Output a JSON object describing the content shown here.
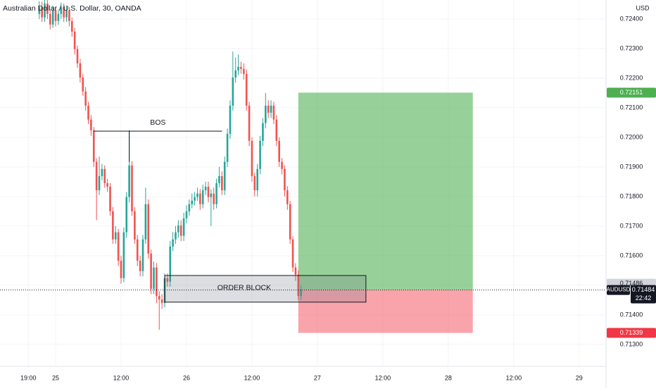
{
  "chart_data": {
    "type": "candlestick",
    "title": "Australian Dollar / U.S. Dollar, 30, OANDA",
    "currency": "USD",
    "symbol": "AUDUSD",
    "countdown": "22:42",
    "up_color": "#26a69a",
    "down_color": "#ef5350",
    "grid": true,
    "x": [
      -3,
      -2.5,
      -2,
      -1.5,
      -1,
      -0.5,
      0,
      0.5,
      1,
      1.5,
      2,
      2.5,
      3,
      3.5,
      4,
      4.5,
      5,
      5.5,
      6,
      6.5,
      7,
      7.5,
      8,
      8.5,
      9,
      9.5,
      10,
      10.5,
      11,
      11.5,
      12,
      12.5,
      13,
      13.5,
      14,
      14.5,
      15,
      15.5,
      16,
      16.5,
      17,
      17.5,
      18,
      18.5,
      19,
      19.5,
      20,
      20.5,
      21,
      21.5,
      22,
      22.5,
      23,
      23.5,
      24,
      24.5,
      25,
      25.5,
      26,
      26.5,
      27,
      27.5,
      28,
      28.5,
      29,
      29.5,
      30,
      30.5,
      31,
      31.5,
      32,
      32.5,
      33,
      33.5,
      34,
      34.5,
      35,
      35.5,
      36,
      36.5,
      37,
      37.5,
      38,
      38.5,
      39,
      39.5,
      40,
      40.5,
      41,
      41.5,
      42,
      42.5,
      43,
      43.5,
      44,
      44.5,
      45
    ],
    "open": [
      0.72417,
      0.7244,
      0.72405,
      0.72452,
      0.72417,
      0.72381,
      0.72429,
      0.72393,
      0.72417,
      0.7244,
      0.72405,
      0.72429,
      0.72393,
      0.72357,
      0.72298,
      0.7225,
      0.72202,
      0.72155,
      0.72107,
      0.7206,
      0.72024,
      0.71917,
      0.71821,
      0.71869,
      0.71893,
      0.71845,
      0.71833,
      0.7175,
      0.71655,
      0.71679,
      0.71583,
      0.71524,
      0.71679,
      0.71798,
      0.71905,
      0.7175,
      0.71655,
      0.71583,
      0.71548,
      0.71655,
      0.71774,
      0.71607,
      0.71488,
      0.7156,
      0.71464,
      0.71452,
      0.7144,
      0.71524,
      0.71512,
      0.71631,
      0.71655,
      0.71679,
      0.71702,
      0.71667,
      0.71726,
      0.7175,
      0.71774,
      0.71786,
      0.71798,
      0.7181,
      0.71774,
      0.71821,
      0.71833,
      0.71798,
      0.7181,
      0.71774,
      0.71845,
      0.71869,
      0.71821,
      0.71917,
      0.72012,
      0.72107,
      0.72202,
      0.72226,
      0.72238,
      0.72231,
      0.72214,
      0.72107,
      0.71988,
      0.71869,
      0.71821,
      0.71893,
      0.71988,
      0.72048,
      0.72107,
      0.72083,
      0.72107,
      0.7206,
      0.71988,
      0.71917,
      0.71893,
      0.71821,
      0.71774,
      0.71655,
      0.7156,
      0.71536,
      0.71464
    ],
    "high": [
      0.7246,
      0.72458,
      0.72464,
      0.72464,
      0.7243,
      0.72445,
      0.7244,
      0.72432,
      0.72455,
      0.72452,
      0.72445,
      0.7244,
      0.72405,
      0.7237,
      0.7231,
      0.72265,
      0.72215,
      0.7217,
      0.7212,
      0.72075,
      0.72035,
      0.7193,
      0.71935,
      0.7191,
      0.71905,
      0.7186,
      0.71845,
      0.71765,
      0.717,
      0.7169,
      0.716,
      0.71695,
      0.71815,
      0.72024,
      0.7192,
      0.71765,
      0.7167,
      0.716,
      0.7167,
      0.7183,
      0.7179,
      0.7162,
      0.7158,
      0.71575,
      0.7148,
      0.7147,
      0.7154,
      0.7154,
      0.7165,
      0.7168,
      0.717,
      0.7172,
      0.7172,
      0.71745,
      0.7177,
      0.7179,
      0.7181,
      0.71815,
      0.7183,
      0.71825,
      0.7184,
      0.7185,
      0.7185,
      0.71825,
      0.7183,
      0.7186,
      0.719,
      0.71885,
      0.71935,
      0.7203,
      0.72125,
      0.7229,
      0.7227,
      0.7228,
      0.72255,
      0.7225,
      0.7223,
      0.7212,
      0.72,
      0.7188,
      0.7191,
      0.72005,
      0.72065,
      0.7215,
      0.72125,
      0.72125,
      0.7212,
      0.72075,
      0.72,
      0.7193,
      0.71905,
      0.71835,
      0.71785,
      0.71665,
      0.71575,
      0.7155,
      0.715
    ],
    "low": [
      0.724,
      0.7239,
      0.7239,
      0.724,
      0.72365,
      0.7237,
      0.72375,
      0.7238,
      0.724,
      0.7239,
      0.7239,
      0.72375,
      0.7234,
      0.7228,
      0.72235,
      0.72185,
      0.7214,
      0.7209,
      0.72045,
      0.72005,
      0.719,
      0.7172,
      0.71805,
      0.71855,
      0.7183,
      0.71815,
      0.71735,
      0.7164,
      0.7164,
      0.71565,
      0.71505,
      0.7151,
      0.7166,
      0.7178,
      0.71735,
      0.7164,
      0.71565,
      0.7153,
      0.7153,
      0.7164,
      0.7159,
      0.7147,
      0.7147,
      0.7144,
      0.7135,
      0.7142,
      0.71425,
      0.71495,
      0.71495,
      0.71615,
      0.7164,
      0.7166,
      0.7165,
      0.7165,
      0.7171,
      0.71735,
      0.7176,
      0.7177,
      0.71785,
      0.71755,
      0.7176,
      0.71805,
      0.7178,
      0.717,
      0.71755,
      0.7176,
      0.7183,
      0.71805,
      0.71805,
      0.719,
      0.71995,
      0.7209,
      0.72185,
      0.7221,
      0.72215,
      0.72195,
      0.7209,
      0.7197,
      0.7185,
      0.718,
      0.718,
      0.71875,
      0.7197,
      0.7203,
      0.72065,
      0.72065,
      0.72045,
      0.7197,
      0.719,
      0.71875,
      0.718,
      0.71755,
      0.7164,
      0.71545,
      0.71515,
      0.7145,
      0.7145
    ],
    "close": [
      0.7244,
      0.72405,
      0.72452,
      0.72417,
      0.72381,
      0.72429,
      0.72393,
      0.72417,
      0.7244,
      0.72405,
      0.72429,
      0.72393,
      0.72357,
      0.72298,
      0.7225,
      0.72202,
      0.72155,
      0.72107,
      0.7206,
      0.72024,
      0.71917,
      0.71821,
      0.71869,
      0.71893,
      0.71845,
      0.71833,
      0.7175,
      0.71655,
      0.71679,
      0.71583,
      0.71524,
      0.71679,
      0.71798,
      0.71905,
      0.7175,
      0.71655,
      0.71583,
      0.71548,
      0.71655,
      0.71774,
      0.71607,
      0.71488,
      0.7156,
      0.71464,
      0.71452,
      0.7144,
      0.71524,
      0.71512,
      0.71631,
      0.71655,
      0.71679,
      0.71702,
      0.71667,
      0.71726,
      0.7175,
      0.71774,
      0.71786,
      0.71798,
      0.7181,
      0.71774,
      0.71821,
      0.71833,
      0.71798,
      0.7181,
      0.71774,
      0.71845,
      0.71869,
      0.71821,
      0.71917,
      0.72012,
      0.72107,
      0.72202,
      0.72226,
      0.72238,
      0.72231,
      0.72214,
      0.72107,
      0.71988,
      0.71869,
      0.71821,
      0.71893,
      0.71988,
      0.72048,
      0.72107,
      0.72083,
      0.72107,
      0.7206,
      0.71988,
      0.71917,
      0.71893,
      0.71821,
      0.71774,
      0.71655,
      0.7156,
      0.71536,
      0.71464,
      0.71484
    ],
    "xlim": [
      -10.2,
      100.8
    ],
    "xticks": [
      {
        "value": -5,
        "label": "19:00"
      },
      {
        "value": 0,
        "label": "25"
      },
      {
        "value": 12,
        "label": "12:00"
      },
      {
        "value": 24,
        "label": "26"
      },
      {
        "value": 36,
        "label": "12:00"
      },
      {
        "value": 48,
        "label": "27"
      },
      {
        "value": 60,
        "label": "12:00"
      },
      {
        "value": 72,
        "label": "28"
      },
      {
        "value": 84,
        "label": "12:00"
      },
      {
        "value": 96,
        "label": "29"
      }
    ],
    "ylim": [
      0.71226,
      0.72464
    ],
    "yticks": [
      {
        "value": 0.713,
        "label": "0.71300"
      },
      {
        "value": 0.714,
        "label": "0.71400"
      },
      {
        "value": 0.715,
        "label": "0.71500"
      },
      {
        "value": 0.716,
        "label": "0.71600"
      },
      {
        "value": 0.717,
        "label": "0.71700"
      },
      {
        "value": 0.718,
        "label": "0.71800"
      },
      {
        "value": 0.719,
        "label": "0.71900"
      },
      {
        "value": 0.72,
        "label": "0.72000"
      },
      {
        "value": 0.721,
        "label": "0.72100"
      },
      {
        "value": 0.722,
        "label": "0.72200"
      },
      {
        "value": 0.723,
        "label": "0.72300"
      },
      {
        "value": 0.724,
        "label": "0.72400"
      }
    ],
    "marker_price": 0.71486,
    "bos": {
      "label": "BOS",
      "x": [
        7,
        30.5
      ],
      "y": 0.72021,
      "pivot_x": 13.5,
      "pivot_low": 0.71917
    },
    "order_block": {
      "label": "ORDER BLOCK",
      "x": [
        20,
        56.9
      ],
      "y": [
        0.71443,
        0.71533
      ]
    },
    "position": {
      "x": [
        44.5,
        76.5
      ],
      "entry": 0.71484,
      "target": 0.72151,
      "stop": 0.71339,
      "target_color": "#4caf50",
      "stop_color": "#f23645"
    }
  }
}
